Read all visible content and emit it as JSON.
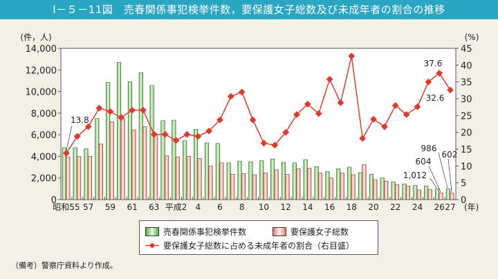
{
  "title": "Ⅰ－５－11図　売春関係事犯検挙件数，要保護女子総数及び未成年者の割合の推移",
  "note": "（備考）警察庁資料より作成。",
  "chart_data": {
    "type": "bar+line",
    "title": "Ⅰ－５－11図　売春関係事犯検挙件数，要保護女子総数及び未成年者の割合の推移",
    "left_axis_unit": "(件，人)",
    "right_axis_unit": "(%)",
    "x_unit": "(年)",
    "ylim_left": [
      0,
      14000
    ],
    "yticks_left": [
      "0",
      "2,000",
      "4,000",
      "6,000",
      "8,000",
      "10,000",
      "12,000",
      "14,000"
    ],
    "ylim_right": [
      0,
      45
    ],
    "yticks_right": [
      "0",
      "5",
      "10",
      "15",
      "20",
      "25",
      "30",
      "35",
      "40",
      "45"
    ],
    "categories": [
      "昭和55",
      "56",
      "57",
      "58",
      "59",
      "60",
      "61",
      "62",
      "63",
      "平成元",
      "2",
      "3",
      "4",
      "5",
      "6",
      "7",
      "8",
      "9",
      "10",
      "11",
      "12",
      "13",
      "14",
      "15",
      "16",
      "17",
      "18",
      "19",
      "20",
      "21",
      "22",
      "23",
      "24",
      "25",
      "26",
      "27"
    ],
    "xtick_labels": [
      "昭和55",
      "",
      "57",
      "",
      "59",
      "",
      "61",
      "",
      "63",
      "",
      "平成2",
      "",
      "4",
      "",
      "6",
      "",
      "8",
      "",
      "10",
      "",
      "12",
      "",
      "14",
      "",
      "16",
      "",
      "18",
      "",
      "20",
      "",
      "22",
      "",
      "24",
      "",
      "26",
      "27"
    ],
    "series": [
      {
        "name": "売春関係事犯検挙件数",
        "type": "bar",
        "axis": "left",
        "color": "#7cc46a",
        "values": [
          4800,
          4800,
          4700,
          7500,
          10850,
          12700,
          10900,
          11750,
          10550,
          7300,
          7350,
          5450,
          6500,
          5250,
          5200,
          3400,
          3550,
          3500,
          3600,
          3750,
          3450,
          3400,
          3700,
          3050,
          2600,
          2850,
          3000,
          2500,
          2350,
          2000,
          1650,
          1450,
          1300,
          1270,
          1012,
          986
        ]
      },
      {
        "name": "要保護女子総数",
        "type": "bar",
        "axis": "left",
        "color": "#f0a090",
        "values": [
          3950,
          4000,
          4000,
          5150,
          7200,
          7500,
          6450,
          6750,
          6050,
          4050,
          3950,
          4000,
          3800,
          3100,
          3400,
          2350,
          2400,
          2300,
          2450,
          2750,
          2350,
          2850,
          2900,
          2450,
          2000,
          2450,
          2300,
          3250,
          1850,
          1700,
          1400,
          1270,
          900,
          950,
          604,
          602
        ]
      },
      {
        "name": "要保護女子総数に占める未成年者の割合（右目盛）",
        "type": "line",
        "axis": "right",
        "color": "#e03a2e",
        "values": [
          13.8,
          18.8,
          21.7,
          27.2,
          26.2,
          24.4,
          26.6,
          26.6,
          19.4,
          19.4,
          17.6,
          19.4,
          18.8,
          20.4,
          23.7,
          30.7,
          32.0,
          23.7,
          16.8,
          16.2,
          20.0,
          25.3,
          28.4,
          25.6,
          35.8,
          28.8,
          42.7,
          18.2,
          23.9,
          21.7,
          28.0,
          25.3,
          27.6,
          35.0,
          37.6,
          32.6
        ]
      }
    ],
    "annotations": [
      "13.8",
      "37.6",
      "32.6",
      "1,012",
      "604",
      "986",
      "602"
    ],
    "legend_position": "bottom",
    "grid": false
  }
}
